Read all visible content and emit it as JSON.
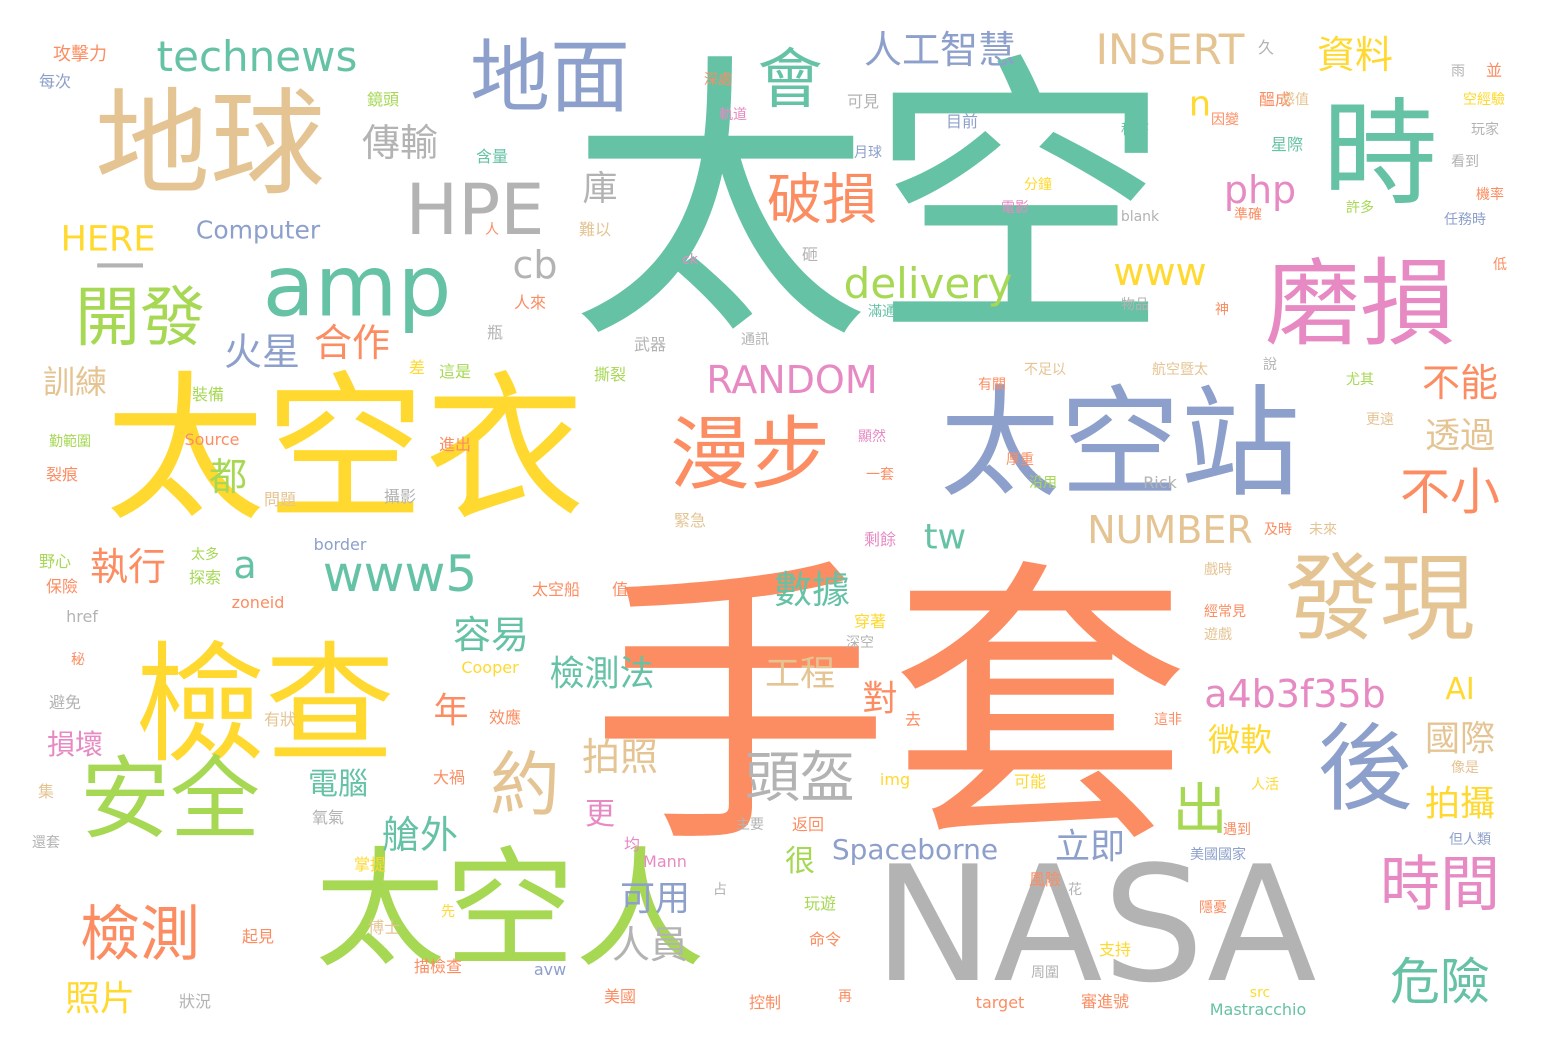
{
  "colors": {
    "teal": "#66c2a5",
    "orange": "#fc8d62",
    "blue": "#8da0cb",
    "pink": "#e78ac3",
    "green": "#a6d854",
    "yellow": "#ffd92f",
    "tan": "#e5c494",
    "gray": "#b3b3b3"
  },
  "words": [
    "太空",
    "手套",
    "太空衣",
    "NASA",
    "太空人",
    "檢查",
    "太空站",
    "地球",
    "地面",
    "時",
    "磨損",
    "發現",
    "後",
    "安全",
    "漫步",
    "amp",
    "HPE",
    "會",
    "technews",
    "人工智慧",
    "INSERT",
    "資料",
    "開發",
    "破損",
    "約",
    "時間",
    "檢測",
    "頭盔",
    "www5",
    "delivery",
    "www",
    "php",
    "不小",
    "危險",
    "a4b3f35b",
    "RANDOM",
    "NUMBER",
    "傳輸",
    "合作",
    "執行",
    "容易",
    "檢測法",
    "工程",
    "拍照",
    "數據",
    "艙外",
    "人員",
    "可用",
    "照片",
    "出",
    "不能",
    "透過",
    "國際",
    "拍攝",
    "立即",
    "微軟",
    "Spaceborne",
    "tw",
    "a",
    "cb",
    "n",
    "火星",
    "都",
    "年",
    "對",
    "很",
    "更",
    "庫",
    "一",
    "訓練",
    "損壞",
    "電腦",
    "AI",
    "HERE",
    "Computer",
    "攻擊力",
    "每次",
    "鏡頭",
    "含量",
    "人",
    "難以",
    "砸",
    "ck",
    "人來",
    "瓶",
    "武器",
    "通訊",
    "裝備",
    "差",
    "這是",
    "撕裂",
    "勤範圍",
    "Source",
    "進出",
    "裂痕",
    "問題",
    "攝影",
    "一套",
    "緊急",
    "剩餘",
    "野心",
    "太多",
    "保險",
    "探索",
    "border",
    "zoneid",
    "href",
    "太空船",
    "值",
    "掃",
    "穿著",
    "深空",
    "秘",
    "Cooper",
    "避免",
    "有狀",
    "效應",
    "去",
    "大禍",
    "img",
    "可能",
    "集",
    "氧氣",
    "主要",
    "返回",
    "還套",
    "掌提",
    "均",
    "Mann",
    "占",
    "風險",
    "起見",
    "先",
    "博士",
    "玩遊",
    "命令",
    "花",
    "描檢查",
    "avw",
    "支持",
    "狀況",
    "美國",
    "控制",
    "再",
    "target",
    "審進號",
    "src",
    "Mastracchio",
    "周圍",
    "久",
    "深處",
    "軌道",
    "醞成",
    "並",
    "雨",
    "空經驗",
    "可見",
    "目前",
    "程序",
    "星際",
    "玩家",
    "月球",
    "分鐘",
    "電影",
    "blank",
    "許多",
    "準確",
    "機率",
    "任務時",
    "滿通",
    "alt",
    "物品",
    "神",
    "說",
    "低",
    "不足以",
    "航空暨太",
    "有關",
    "尤其",
    "更遠",
    "顯然",
    "厚重",
    "沿用",
    "Rick",
    "及時",
    "未來",
    "戲時",
    "經常見",
    "遊戲",
    "遇到",
    "這非",
    "人活",
    "像是",
    "但人類",
    "美國國家",
    "隱憂",
    "感值",
    "因變",
    "看到"
  ]
}
